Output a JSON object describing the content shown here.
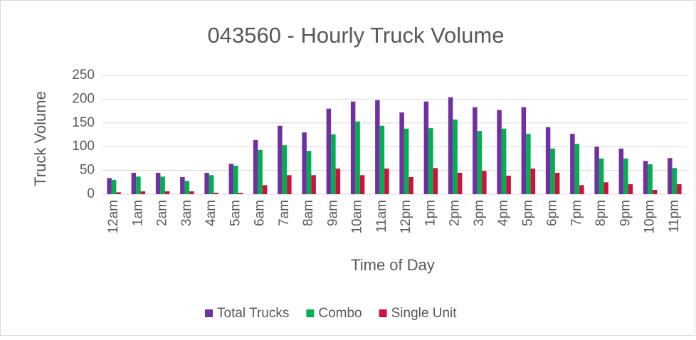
{
  "chart_data": {
    "type": "bar",
    "title": "043560 - Hourly Truck Volume",
    "x_label": "Time of Day",
    "y_label": "Truck Volume",
    "categories": [
      "12am",
      "1am",
      "2am",
      "3am",
      "4am",
      "5am",
      "6am",
      "7am",
      "8am",
      "9am",
      "10am",
      "11am",
      "12pm",
      "1pm",
      "2pm",
      "3pm",
      "4pm",
      "5pm",
      "6pm",
      "7pm",
      "8pm",
      "9pm",
      "10pm",
      "11pm"
    ],
    "series": [
      {
        "name": "Total Trucks",
        "color": "#7030a0",
        "values": [
          34,
          45,
          45,
          36,
          45,
          64,
          114,
          144,
          130,
          180,
          195,
          198,
          172,
          195,
          204,
          183,
          177,
          183,
          141,
          127,
          100,
          96,
          70,
          76
        ]
      },
      {
        "name": "Combo",
        "color": "#00b050",
        "values": [
          30,
          37,
          37,
          28,
          40,
          60,
          93,
          103,
          91,
          126,
          153,
          144,
          138,
          139,
          157,
          133,
          138,
          127,
          96,
          106,
          75,
          75,
          63,
          55
        ]
      },
      {
        "name": "Single Unit",
        "color": "#d0103a",
        "values": [
          4,
          6,
          6,
          6,
          3,
          3,
          19,
          40,
          40,
          54,
          40,
          54,
          36,
          55,
          45,
          49,
          39,
          54,
          45,
          19,
          25,
          21,
          9,
          21
        ]
      }
    ],
    "ylim": [
      0,
      250
    ],
    "yticks": [
      0,
      50,
      100,
      150,
      200,
      250
    ],
    "grid": true,
    "legend": "bottom"
  }
}
